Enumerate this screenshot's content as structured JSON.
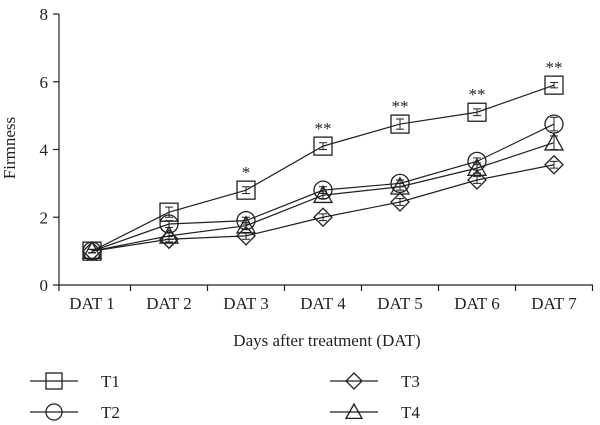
{
  "chart_data": {
    "type": "line",
    "title": "",
    "xlabel": "Days after treatment (DAT)",
    "ylabel": "Firmness",
    "ylim": [
      0,
      8
    ],
    "yticks": [
      "0",
      "2",
      "4",
      "6",
      "8"
    ],
    "categories": [
      "DAT 1",
      "DAT 2",
      "DAT 3",
      "DAT 4",
      "DAT 5",
      "DAT 6",
      "DAT 7"
    ],
    "grid": false,
    "legend_position": "bottom",
    "series": [
      {
        "name": "T1",
        "marker": "square",
        "values": [
          1.0,
          2.15,
          2.8,
          4.1,
          4.75,
          5.1,
          5.9
        ],
        "errors": [
          0.05,
          0.15,
          0.1,
          0.1,
          0.15,
          0.1,
          0.08
        ]
      },
      {
        "name": "T2",
        "marker": "circle",
        "values": [
          1.0,
          1.8,
          1.9,
          2.8,
          3.0,
          3.65,
          4.75
        ],
        "errors": [
          0.05,
          0.1,
          0.1,
          0.1,
          0.1,
          0.1,
          0.2
        ]
      },
      {
        "name": "T3",
        "marker": "diamond",
        "values": [
          1.0,
          1.35,
          1.45,
          2.0,
          2.45,
          3.1,
          3.55
        ],
        "errors": [
          0.05,
          0.08,
          0.1,
          0.1,
          0.1,
          0.1,
          0.1
        ]
      },
      {
        "name": "T4",
        "marker": "triangle",
        "values": [
          1.0,
          1.45,
          1.75,
          2.65,
          2.9,
          3.45,
          4.2
        ],
        "errors": [
          0.05,
          0.1,
          0.1,
          0.1,
          0.1,
          0.15,
          0.2
        ]
      }
    ],
    "annotations": [
      "",
      "",
      "*",
      "**",
      "**",
      "**",
      "**"
    ]
  },
  "colors": {
    "ink": "#231f20",
    "background": "#ffffff"
  }
}
